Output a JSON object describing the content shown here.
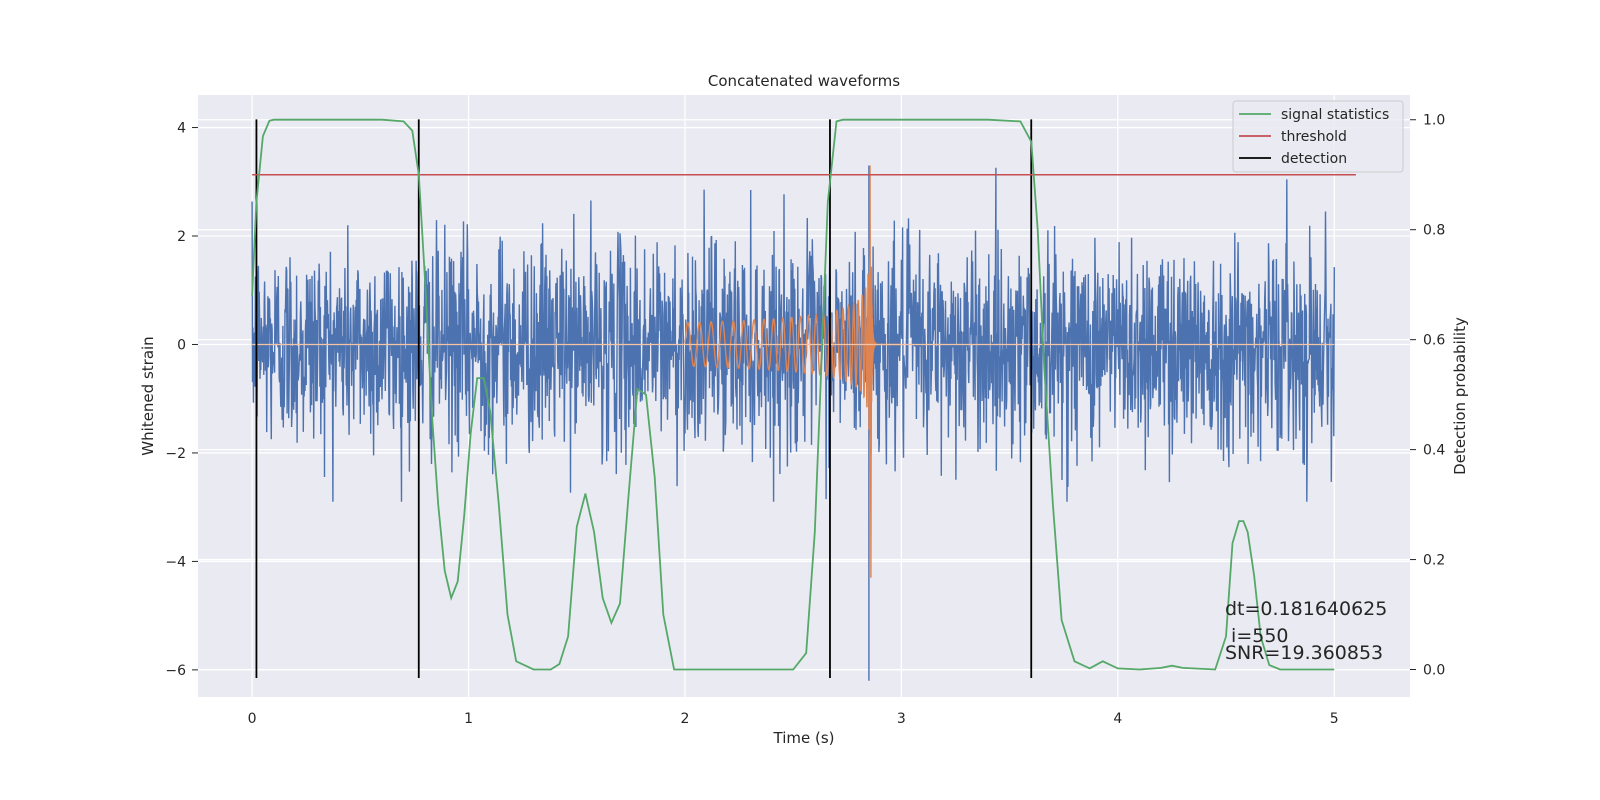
{
  "chart_data": {
    "type": "line",
    "title": "Concatenated waveforms",
    "xlabel": "Time (s)",
    "ylabel": "Whitened strain",
    "y2label": "Detection probability",
    "xlim": [
      -0.25,
      5.35
    ],
    "ylim": [
      -6.5,
      4.6
    ],
    "y2lim": [
      -0.05,
      1.045
    ],
    "x_ticks": [
      0,
      1,
      2,
      3,
      4,
      5
    ],
    "y_ticks": [
      -6,
      -4,
      -2,
      0,
      2,
      4
    ],
    "y2_ticks": [
      0.0,
      0.2,
      0.4,
      0.6,
      0.8,
      1.0
    ],
    "x_tick_labels": [
      "0",
      "1",
      "2",
      "3",
      "4",
      "5"
    ],
    "y_tick_labels": [
      "−6",
      "−4",
      "−2",
      "0",
      "2",
      "4"
    ],
    "y2_tick_labels": [
      "0.0",
      "0.2",
      "0.4",
      "0.6",
      "0.8",
      "1.0"
    ],
    "grid": true,
    "legend_position": "top-right",
    "legend": [
      {
        "label": "signal statistics",
        "color": "#55a868"
      },
      {
        "label": "threshold",
        "color": "#c44e52"
      },
      {
        "label": "detection",
        "color": "#000000"
      }
    ],
    "series": [
      {
        "kind": "noise",
        "color": "#4c72b0",
        "x_range": [
          0,
          5
        ],
        "amplitude_typical": [
          -2,
          2
        ],
        "amplitude_extremes": [
          -2.9,
          3.6
        ],
        "spike": {
          "x": 2.85,
          "min": -6.2,
          "max": 3.3
        }
      },
      {
        "kind": "chirp",
        "color": "#dd8452",
        "x_range": [
          2.0,
          2.88
        ],
        "start_amplitude": 0.4,
        "peak_amplitude": 2.5,
        "merger": {
          "x": 2.855,
          "min": -4.3,
          "max": 3.3
        }
      },
      {
        "name": "signal statistics",
        "axis": "right",
        "color": "#55a868",
        "x": [
          0,
          0.02,
          0.05,
          0.08,
          0.1,
          0.2,
          0.4,
          0.6,
          0.7,
          0.74,
          0.77,
          0.8,
          0.83,
          0.86,
          0.89,
          0.92,
          0.95,
          0.98,
          1.01,
          1.04,
          1.07,
          1.1,
          1.14,
          1.18,
          1.22,
          1.3,
          1.38,
          1.42,
          1.46,
          1.5,
          1.54,
          1.58,
          1.62,
          1.66,
          1.7,
          1.74,
          1.78,
          1.82,
          1.86,
          1.9,
          1.95,
          2.0,
          2.3,
          2.5,
          2.56,
          2.6,
          2.63,
          2.66,
          2.7,
          2.73,
          2.78,
          3.0,
          3.4,
          3.55,
          3.6,
          3.63,
          3.66,
          3.7,
          3.74,
          3.8,
          3.87,
          3.93,
          4.0,
          4.1,
          4.2,
          4.25,
          4.3,
          4.45,
          4.5,
          4.53,
          4.56,
          4.58,
          4.6,
          4.63,
          4.66,
          4.7,
          4.75,
          4.85,
          5.0
        ],
        "y": [
          0.68,
          0.85,
          0.97,
          0.998,
          1.0,
          1.0,
          1.0,
          1.0,
          0.997,
          0.98,
          0.9,
          0.7,
          0.47,
          0.3,
          0.18,
          0.13,
          0.16,
          0.28,
          0.43,
          0.53,
          0.53,
          0.47,
          0.3,
          0.1,
          0.015,
          0.0,
          0.0,
          0.01,
          0.06,
          0.26,
          0.32,
          0.25,
          0.13,
          0.085,
          0.12,
          0.32,
          0.51,
          0.5,
          0.35,
          0.1,
          0.0,
          0.0,
          0.0,
          0.0,
          0.03,
          0.25,
          0.55,
          0.85,
          0.997,
          1.0,
          1.0,
          1.0,
          1.0,
          0.997,
          0.96,
          0.8,
          0.55,
          0.3,
          0.09,
          0.015,
          0.002,
          0.015,
          0.002,
          0.0,
          0.003,
          0.007,
          0.003,
          0.0,
          0.06,
          0.23,
          0.27,
          0.27,
          0.25,
          0.17,
          0.06,
          0.008,
          0.0,
          0.0,
          0.0
        ]
      },
      {
        "name": "threshold",
        "axis": "right",
        "color": "#c44e52",
        "x": [
          0,
          5.1
        ],
        "y": [
          0.9,
          0.9
        ]
      },
      {
        "name": "detection",
        "axis": "left",
        "color": "#000000",
        "x_positions": [
          0.02,
          0.77,
          2.67,
          3.6
        ],
        "y_range": [
          -6.15,
          4.15
        ]
      }
    ],
    "annotations": [
      {
        "text": "dt=0.181640625"
      },
      {
        "text": " i=550"
      },
      {
        "text": "SNR=19.360853"
      }
    ]
  }
}
